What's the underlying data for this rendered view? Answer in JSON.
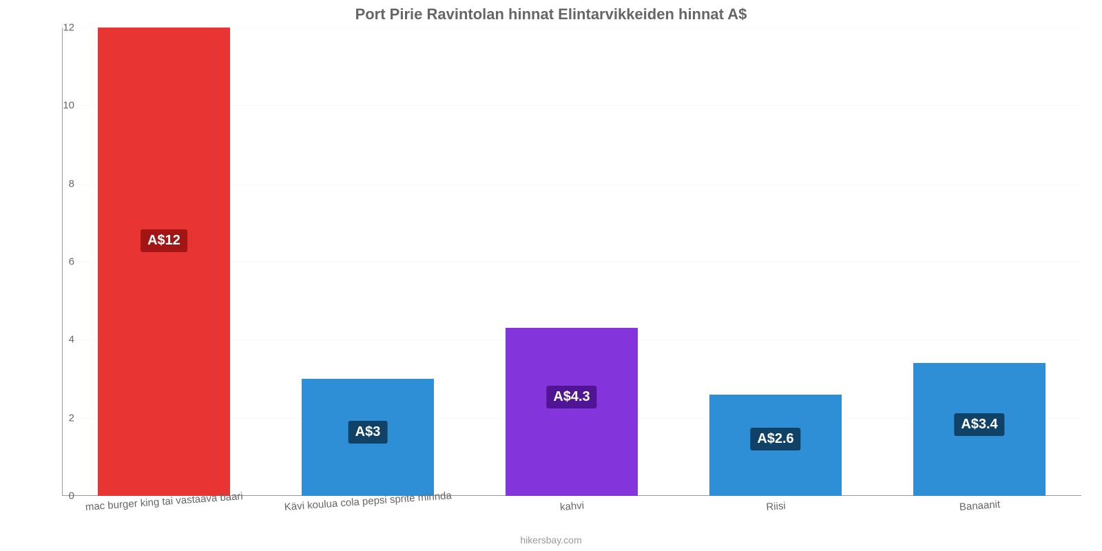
{
  "chart": {
    "type": "bar",
    "title": "Port Pirie Ravintolan hinnat Elintarvikkeiden hinnat A$",
    "title_fontsize": 22,
    "title_color": "#666666",
    "source": "hikersbay.com",
    "source_fontsize": 14,
    "source_color": "#999999",
    "background_color": "#ffffff",
    "grid_color": "#fafafa",
    "axis_color": "#999999",
    "tick_color": "#666666",
    "tick_fontsize": 15,
    "xlabel_fontsize": 15,
    "xlabel_rotation_deg": -4,
    "ylim": [
      0,
      12
    ],
    "ytick_step": 2,
    "yticks": [
      "0",
      "2",
      "4",
      "6",
      "8",
      "10",
      "12"
    ],
    "bar_width": 0.65,
    "datalabel_fontsize": 20,
    "categories": [
      "mac burger king tai vastaava baari",
      "Kävi koulua cola pepsi sprite mirinda",
      "kahvi",
      "Riisi",
      "Banaanit"
    ],
    "values": [
      12,
      3,
      4.3,
      2.6,
      3.4
    ],
    "datalabels": [
      "A$12",
      "A$3",
      "A$4.3",
      "A$2.6",
      "A$3.4"
    ],
    "bar_colors": [
      "#e93434",
      "#2e8fd6",
      "#8334da",
      "#2e8fd6",
      "#2e8fd6"
    ],
    "datalabel_bg": [
      "#a31414",
      "#0f4266",
      "#4f1594",
      "#0f4266",
      "#0f4266"
    ],
    "datalabel_text_color": "#ffffff"
  }
}
